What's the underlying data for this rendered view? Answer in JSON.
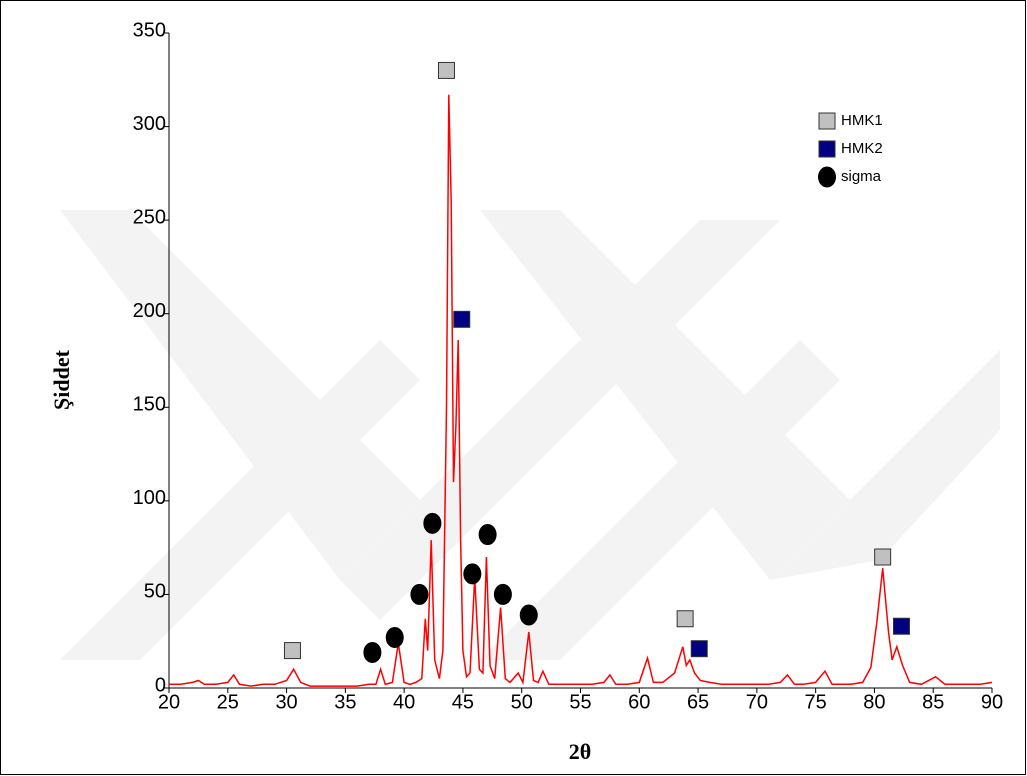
{
  "chart_data": {
    "type": "line",
    "x_label": "2θ",
    "y_label": "Şiddet",
    "xlim": [
      20,
      90
    ],
    "xticks": [
      20,
      25,
      30,
      35,
      40,
      45,
      50,
      55,
      60,
      65,
      70,
      75,
      80,
      85,
      90
    ],
    "ylim": [
      0,
      350
    ],
    "yticks": [
      0,
      50,
      100,
      150,
      200,
      250,
      300,
      350
    ],
    "legend": "upper right",
    "line": {
      "color": "#ff0000",
      "x": [
        20,
        21,
        22,
        22.5,
        23,
        24,
        25,
        25.5,
        26,
        27,
        28,
        29,
        30,
        30.6,
        31.2,
        32,
        33,
        34,
        35,
        36,
        37,
        37.6,
        38,
        38.4,
        39,
        39.5,
        40,
        40.5,
        41,
        41.5,
        41.8,
        42.0,
        42.3,
        42.6,
        43,
        43.3,
        43.6,
        43.8,
        44.0,
        44.2,
        44.4,
        44.6,
        44.8,
        45.0,
        45.3,
        45.6,
        46.0,
        46.4,
        46.7,
        47.0,
        47.3,
        47.7,
        48.2,
        48.6,
        49,
        49.7,
        50.1,
        50.6,
        51,
        51.4,
        51.8,
        52.3,
        53,
        54,
        55,
        56,
        57,
        57.5,
        58,
        59,
        60,
        60.7,
        61.2,
        62,
        63,
        63.7,
        64,
        64.3,
        64.7,
        65.2,
        66,
        67,
        68,
        69,
        70,
        71,
        72,
        72.6,
        73.2,
        74,
        75,
        75.8,
        76.4,
        77,
        78,
        79,
        79.7,
        80.2,
        80.7,
        81.2,
        81.5,
        81.9,
        82.4,
        83,
        84,
        85.2,
        86,
        87,
        88,
        89,
        90
      ],
      "values": [
        2,
        2,
        3,
        4,
        2,
        2,
        3,
        7,
        2,
        1,
        2,
        2,
        4,
        10,
        3,
        1,
        1,
        1,
        1,
        1,
        2,
        2,
        10,
        2,
        3,
        24,
        3,
        2,
        3,
        5,
        37,
        20,
        79,
        15,
        5,
        20,
        150,
        317,
        260,
        110,
        140,
        186,
        80,
        20,
        6,
        8,
        59,
        10,
        8,
        70,
        12,
        5,
        43,
        5,
        3,
        8,
        3,
        30,
        4,
        3,
        9,
        2,
        2,
        2,
        2,
        2,
        3,
        7,
        2,
        2,
        3,
        16,
        3,
        3,
        8,
        22,
        12,
        15,
        8,
        4,
        3,
        2,
        2,
        2,
        2,
        2,
        3,
        7,
        2,
        2,
        3,
        9,
        2,
        2,
        2,
        3,
        11,
        35,
        64,
        30,
        15,
        22,
        12,
        3,
        2,
        6,
        2,
        2,
        2,
        2,
        3
      ]
    },
    "markers": [
      {
        "name": "HMK1",
        "color": "#c0c0c0",
        "shape": "square",
        "x": [
          30.5,
          43.6,
          63.9,
          80.7
        ],
        "values": [
          20,
          330,
          37,
          70
        ]
      },
      {
        "name": "HMK2",
        "color": "#000080",
        "shape": "square",
        "x": [
          44.9,
          65.1,
          82.3
        ],
        "values": [
          197,
          21,
          33
        ]
      },
      {
        "name": "sigma",
        "color": "#000000",
        "shape": "circle",
        "x": [
          37.3,
          39.2,
          41.3,
          42.4,
          45.8,
          47.1,
          48.4,
          50.6
        ],
        "values": [
          19,
          27,
          50,
          88,
          61,
          82,
          50,
          39
        ]
      }
    ]
  }
}
